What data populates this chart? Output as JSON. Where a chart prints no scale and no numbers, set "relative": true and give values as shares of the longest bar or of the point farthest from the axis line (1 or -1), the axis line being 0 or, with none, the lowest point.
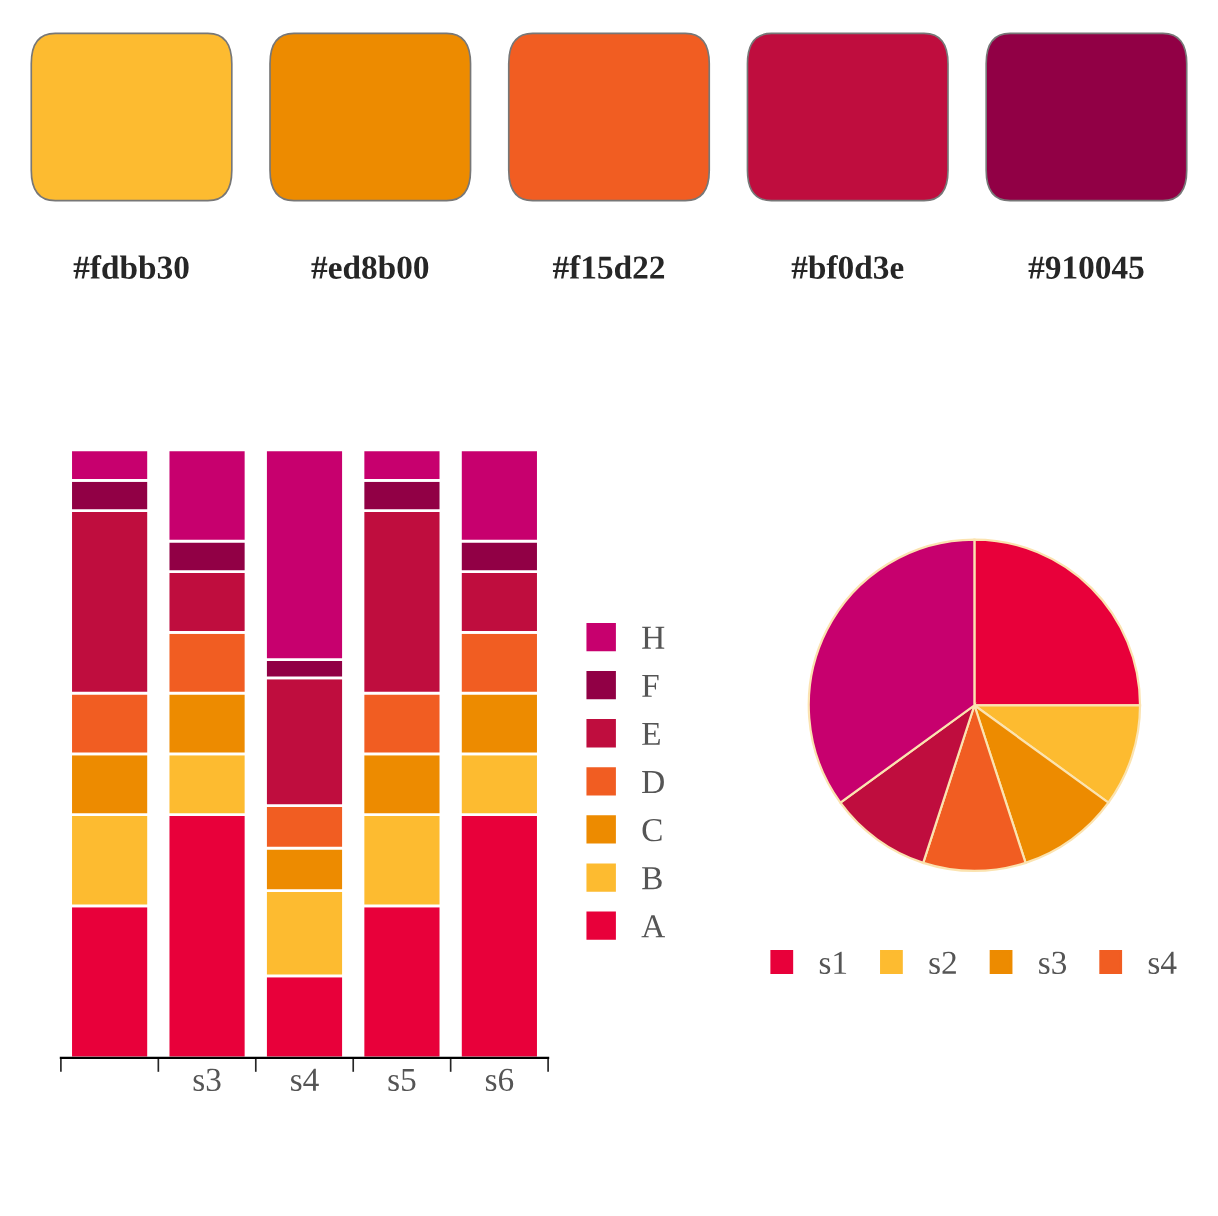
{
  "chart_data": [
    {
      "type": "other",
      "annotations": [
        "#fdbb30",
        "#ed8b00",
        "#f15d22",
        "#bf0d3e",
        "#910045"
      ],
      "colors": [
        "#fdbb30",
        "#ed8b00",
        "#f15d22",
        "#bf0d3e",
        "#910045"
      ]
    },
    {
      "type": "bar",
      "stacked": true,
      "relative": true,
      "legend": "right",
      "categories": [
        null,
        "s3",
        "s4",
        "s5",
        "s6"
      ],
      "series": [
        {
          "name": "A",
          "color": "#e8003a",
          "values": [
            0.25,
            0.4,
            0.135,
            0.25,
            0.4
          ]
        },
        {
          "name": "B",
          "color": "#fdbb30",
          "values": [
            0.15,
            0.1,
            0.14,
            0.15,
            0.1
          ]
        },
        {
          "name": "C",
          "color": "#ed8b00",
          "values": [
            0.1,
            0.1,
            0.07,
            0.1,
            0.1
          ]
        },
        {
          "name": "D",
          "color": "#f15d22",
          "values": [
            0.1,
            0.1,
            0.07,
            0.1,
            0.1
          ]
        },
        {
          "name": "E",
          "color": "#bf0d3e",
          "values": [
            0.3,
            0.1,
            0.21,
            0.3,
            0.1
          ]
        },
        {
          "name": "F",
          "color": "#910045",
          "values": [
            0.05,
            0.05,
            0.03,
            0.05,
            0.05
          ]
        },
        {
          "name": "H",
          "color": "#c7006e",
          "values": [
            0.05,
            0.15,
            0.345,
            0.05,
            0.15
          ]
        }
      ]
    },
    {
      "type": "pie",
      "legend": "bottom",
      "categories": [
        "s1",
        "s2",
        "s3",
        "s4",
        null,
        null
      ],
      "values": [
        25,
        10,
        10,
        10,
        10,
        35
      ],
      "colors": [
        "#e8003a",
        "#fdbb30",
        "#ed8b00",
        "#f15d22",
        "#bf0d3e",
        "#c7006e"
      ]
    }
  ]
}
